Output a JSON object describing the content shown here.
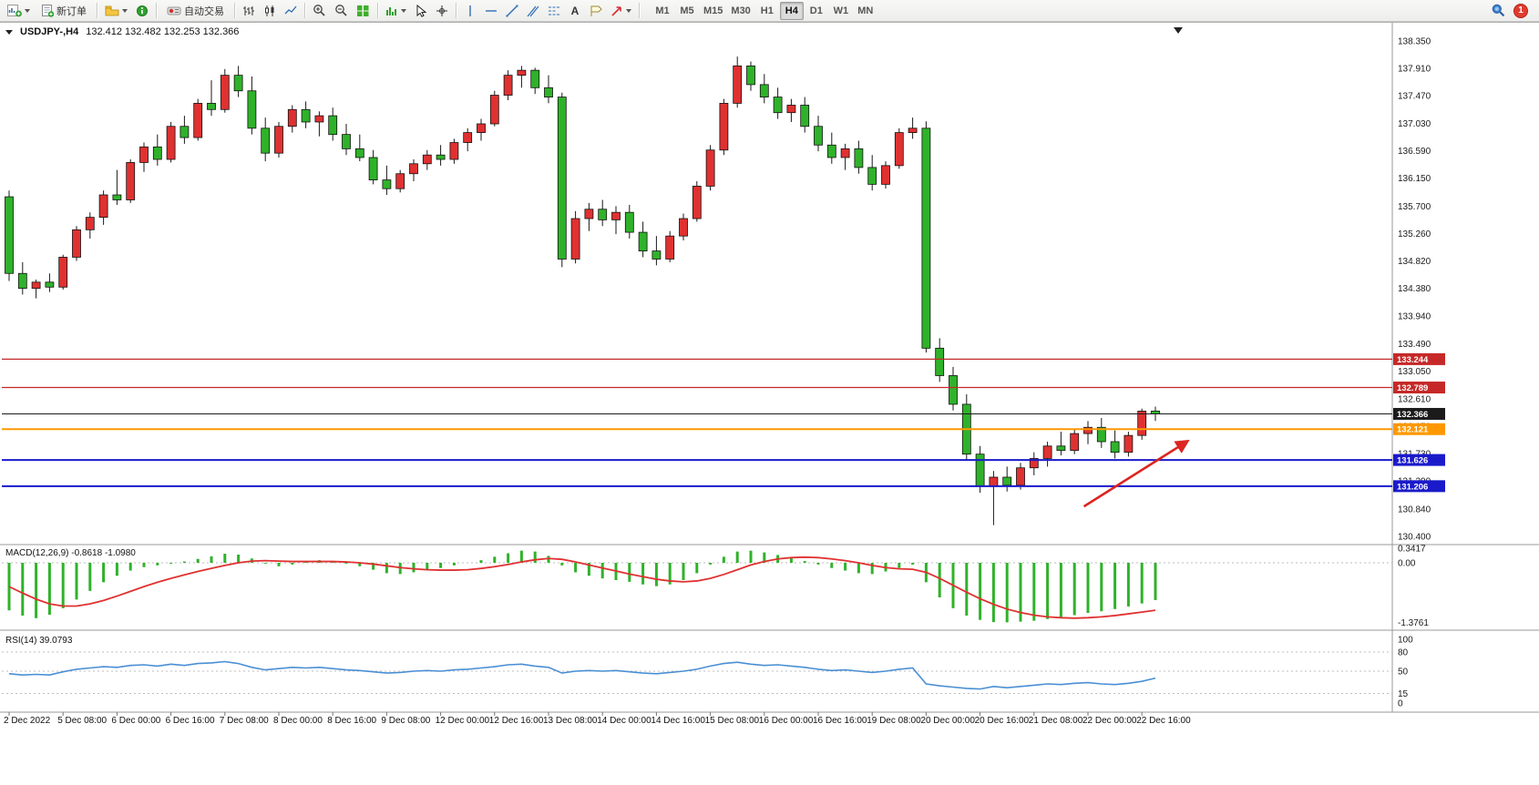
{
  "toolbar": {
    "buttons": {
      "new_order": "新订单",
      "auto_trading": "自动交易",
      "text_tool": "A"
    },
    "timeframes": [
      "M1",
      "M5",
      "M15",
      "M30",
      "H1",
      "H4",
      "D1",
      "W1",
      "MN"
    ],
    "active_timeframe": "H4",
    "notification_badge": "1"
  },
  "chart_header": {
    "symbol_period": "USDJPY-,H4",
    "ohlc": "132.412 132.482 132.253 132.366"
  },
  "chart_data": {
    "type": "candlestick",
    "symbol": "USDJPY-",
    "timeframe": "H4",
    "colors": {
      "bull": "#e03131",
      "bear": "#2fb22a",
      "wick": "#1a1a1a",
      "macd_hist": "#2fb22a",
      "macd_signal": "#e03131",
      "rsi_line": "#4a8fd4",
      "arrow": "#dd2420",
      "level_red": "#c62828",
      "level_orange": "#ff9800",
      "level_blue": "#1a1acb",
      "current_price": "#1b1b1b"
    },
    "price_axis": {
      "min": 130.4,
      "max": 138.35,
      "ticks": [
        "138.350",
        "137.910",
        "137.470",
        "137.030",
        "136.590",
        "136.150",
        "135.700",
        "135.260",
        "134.820",
        "134.380",
        "133.940",
        "133.490",
        "133.050",
        "132.610",
        "132.170",
        "131.730",
        "131.290",
        "130.840",
        "130.400"
      ]
    },
    "x_label_step": 4,
    "x_labels": [
      "2 Dec 2022",
      "5 Dec 08:00",
      "6 Dec 00:00",
      "6 Dec 16:00",
      "7 Dec 08:00",
      "8 Dec 00:00",
      "8 Dec 16:00",
      "9 Dec 08:00",
      "12 Dec 00:00",
      "12 Dec 16:00",
      "13 Dec 08:00",
      "14 Dec 00:00",
      "14 Dec 16:00",
      "15 Dec 08:00",
      "16 Dec 00:00",
      "16 Dec 16:00",
      "19 Dec 08:00",
      "20 Dec 00:00",
      "20 Dec 16:00",
      "21 Dec 08:00",
      "22 Dec 00:00",
      "22 Dec 16:00"
    ],
    "candles": [
      [
        135.85,
        135.95,
        134.5,
        134.62
      ],
      [
        134.62,
        134.8,
        134.28,
        134.38
      ],
      [
        134.38,
        134.52,
        134.22,
        134.48
      ],
      [
        134.48,
        134.62,
        134.32,
        134.4
      ],
      [
        134.4,
        134.92,
        134.36,
        134.88
      ],
      [
        134.88,
        135.38,
        134.82,
        135.32
      ],
      [
        135.32,
        135.6,
        135.18,
        135.52
      ],
      [
        135.52,
        135.95,
        135.4,
        135.88
      ],
      [
        135.88,
        136.28,
        135.72,
        135.8
      ],
      [
        135.8,
        136.45,
        135.75,
        136.4
      ],
      [
        136.4,
        136.72,
        136.25,
        136.65
      ],
      [
        136.65,
        136.85,
        136.35,
        136.45
      ],
      [
        136.45,
        137.05,
        136.4,
        136.98
      ],
      [
        136.98,
        137.15,
        136.7,
        136.8
      ],
      [
        136.8,
        137.42,
        136.75,
        137.35
      ],
      [
        137.35,
        137.72,
        137.15,
        137.25
      ],
      [
        137.25,
        137.9,
        137.2,
        137.8
      ],
      [
        137.8,
        137.95,
        137.45,
        137.55
      ],
      [
        137.55,
        137.78,
        136.85,
        136.95
      ],
      [
        136.95,
        137.12,
        136.42,
        136.55
      ],
      [
        136.55,
        137.05,
        136.48,
        136.98
      ],
      [
        136.98,
        137.32,
        136.88,
        137.25
      ],
      [
        137.25,
        137.38,
        136.95,
        137.05
      ],
      [
        137.05,
        137.22,
        136.82,
        137.15
      ],
      [
        137.15,
        137.28,
        136.75,
        136.85
      ],
      [
        136.85,
        137.02,
        136.52,
        136.62
      ],
      [
        136.62,
        136.85,
        136.42,
        136.48
      ],
      [
        136.48,
        136.6,
        136.05,
        136.12
      ],
      [
        136.12,
        136.35,
        135.88,
        135.98
      ],
      [
        135.98,
        136.28,
        135.92,
        136.22
      ],
      [
        136.22,
        136.45,
        136.1,
        136.38
      ],
      [
        136.38,
        136.6,
        136.28,
        136.52
      ],
      [
        136.52,
        136.68,
        136.35,
        136.45
      ],
      [
        136.45,
        136.78,
        136.38,
        136.72
      ],
      [
        136.72,
        136.95,
        136.58,
        136.88
      ],
      [
        136.88,
        137.1,
        136.75,
        137.02
      ],
      [
        137.02,
        137.55,
        136.98,
        137.48
      ],
      [
        137.48,
        137.88,
        137.4,
        137.8
      ],
      [
        137.8,
        137.95,
        137.6,
        137.88
      ],
      [
        137.88,
        137.92,
        137.5,
        137.6
      ],
      [
        137.6,
        137.8,
        137.35,
        137.45
      ],
      [
        137.45,
        137.52,
        134.72,
        134.85
      ],
      [
        134.85,
        135.62,
        134.78,
        135.5
      ],
      [
        135.5,
        135.75,
        135.3,
        135.65
      ],
      [
        135.65,
        135.8,
        135.38,
        135.48
      ],
      [
        135.48,
        135.7,
        135.25,
        135.6
      ],
      [
        135.6,
        135.72,
        135.18,
        135.28
      ],
      [
        135.28,
        135.45,
        134.88,
        134.98
      ],
      [
        134.98,
        135.22,
        134.75,
        134.85
      ],
      [
        134.85,
        135.3,
        134.8,
        135.22
      ],
      [
        135.22,
        135.58,
        135.15,
        135.5
      ],
      [
        135.5,
        136.1,
        135.45,
        136.02
      ],
      [
        136.02,
        136.68,
        135.95,
        136.6
      ],
      [
        136.6,
        137.42,
        136.52,
        137.35
      ],
      [
        137.35,
        138.1,
        137.28,
        137.95
      ],
      [
        137.95,
        138.02,
        137.55,
        137.65
      ],
      [
        137.65,
        137.82,
        137.35,
        137.45
      ],
      [
        137.45,
        137.6,
        137.1,
        137.2
      ],
      [
        137.2,
        137.42,
        137.05,
        137.32
      ],
      [
        137.32,
        137.45,
        136.88,
        136.98
      ],
      [
        136.98,
        137.15,
        136.58,
        136.68
      ],
      [
        136.68,
        136.88,
        136.38,
        136.48
      ],
      [
        136.48,
        136.7,
        136.28,
        136.62
      ],
      [
        136.62,
        136.75,
        136.22,
        136.32
      ],
      [
        136.32,
        136.52,
        135.95,
        136.05
      ],
      [
        136.05,
        136.42,
        135.98,
        136.35
      ],
      [
        136.35,
        136.95,
        136.3,
        136.88
      ],
      [
        136.88,
        137.12,
        136.78,
        136.95
      ],
      [
        136.95,
        137.06,
        133.35,
        133.42
      ],
      [
        133.42,
        133.58,
        132.88,
        132.98
      ],
      [
        132.98,
        133.12,
        132.42,
        132.52
      ],
      [
        132.52,
        132.68,
        131.62,
        131.72
      ],
      [
        131.72,
        131.85,
        131.1,
        131.2
      ],
      [
        131.2,
        131.45,
        130.58,
        131.35
      ],
      [
        131.35,
        131.52,
        131.12,
        131.22
      ],
      [
        131.22,
        131.58,
        131.15,
        131.5
      ],
      [
        131.5,
        131.75,
        131.38,
        131.65
      ],
      [
        131.65,
        131.92,
        131.52,
        131.85
      ],
      [
        131.85,
        132.08,
        131.7,
        131.78
      ],
      [
        131.78,
        132.12,
        131.72,
        132.05
      ],
      [
        132.05,
        132.25,
        131.88,
        132.15
      ],
      [
        132.15,
        132.3,
        131.82,
        131.92
      ],
      [
        131.92,
        132.1,
        131.65,
        131.75
      ],
      [
        131.75,
        132.08,
        131.68,
        132.02
      ],
      [
        132.02,
        132.45,
        131.95,
        132.41
      ],
      [
        132.412,
        132.482,
        132.253,
        132.366
      ]
    ],
    "levels": [
      {
        "label": "133.244",
        "price": 133.244,
        "color_key": "level_red",
        "width": 1.2
      },
      {
        "label": "132.789",
        "price": 132.789,
        "color_key": "level_red",
        "width": 1.2
      },
      {
        "label": "132.366",
        "price": 132.366,
        "color_key": "current_price",
        "width": 1
      },
      {
        "label": "132.121",
        "price": 132.121,
        "color_key": "level_orange",
        "width": 2
      },
      {
        "label": "131.626",
        "price": 131.626,
        "color_key": "level_blue",
        "width": 2
      },
      {
        "label": "131.206",
        "price": 131.206,
        "color_key": "level_blue",
        "width": 2
      }
    ],
    "arrow": {
      "from": {
        "index": 79.7,
        "price": 130.88
      },
      "to": {
        "index": 87.4,
        "price": 131.93
      }
    },
    "indicators": {
      "macd": {
        "label": "MACD(12,26,9)",
        "values_text": "-0.8618 -1.0980",
        "scale": [
          {
            "text": "0.3417",
            "value": 0.3417
          },
          {
            "text": "0.00",
            "value": 0
          },
          {
            "text": "-1.3761",
            "value": -1.3761
          }
        ],
        "histogram": [
          -1.1,
          -1.22,
          -1.28,
          -1.2,
          -1.05,
          -0.85,
          -0.65,
          -0.45,
          -0.3,
          -0.18,
          -0.1,
          -0.06,
          -0.02,
          0.03,
          0.09,
          0.15,
          0.21,
          0.19,
          0.1,
          -0.02,
          -0.08,
          -0.04,
          0.02,
          0.06,
          0.04,
          -0.02,
          -0.08,
          -0.16,
          -0.24,
          -0.26,
          -0.22,
          -0.16,
          -0.12,
          -0.06,
          0.0,
          0.06,
          0.14,
          0.22,
          0.28,
          0.26,
          0.16,
          -0.06,
          -0.22,
          -0.3,
          -0.36,
          -0.4,
          -0.44,
          -0.5,
          -0.54,
          -0.5,
          -0.4,
          -0.24,
          -0.04,
          0.14,
          0.26,
          0.28,
          0.24,
          0.18,
          0.12,
          0.04,
          -0.04,
          -0.12,
          -0.18,
          -0.24,
          -0.26,
          -0.2,
          -0.12,
          -0.04,
          -0.45,
          -0.8,
          -1.05,
          -1.22,
          -1.32,
          -1.37,
          -1.376,
          -1.36,
          -1.34,
          -1.3,
          -1.26,
          -1.21,
          -1.16,
          -1.12,
          -1.07,
          -1.01,
          -0.94,
          -0.8618
        ],
        "signal": [
          -0.55,
          -0.7,
          -0.84,
          -0.95,
          -1.0,
          -1.0,
          -0.95,
          -0.87,
          -0.77,
          -0.66,
          -0.55,
          -0.45,
          -0.36,
          -0.28,
          -0.2,
          -0.13,
          -0.06,
          0.0,
          0.04,
          0.05,
          0.04,
          0.03,
          0.03,
          0.03,
          0.03,
          0.02,
          0.0,
          -0.03,
          -0.07,
          -0.11,
          -0.14,
          -0.16,
          -0.17,
          -0.17,
          -0.16,
          -0.13,
          -0.09,
          -0.04,
          0.02,
          0.07,
          0.1,
          0.08,
          0.02,
          -0.05,
          -0.12,
          -0.19,
          -0.26,
          -0.32,
          -0.38,
          -0.42,
          -0.44,
          -0.42,
          -0.36,
          -0.27,
          -0.16,
          -0.05,
          0.03,
          0.09,
          0.12,
          0.13,
          0.12,
          0.09,
          0.05,
          0.0,
          -0.06,
          -0.11,
          -0.14,
          -0.15,
          -0.22,
          -0.36,
          -0.52,
          -0.68,
          -0.83,
          -0.96,
          -1.07,
          -1.15,
          -1.21,
          -1.25,
          -1.27,
          -1.28,
          -1.27,
          -1.25,
          -1.22,
          -1.18,
          -1.14,
          -1.098
        ]
      },
      "rsi": {
        "label": "RSI(14)",
        "value_text": "39.0793",
        "scale": [
          {
            "text": "100",
            "value": 100
          },
          {
            "text": "80",
            "value": 80
          },
          {
            "text": "50",
            "value": 50
          },
          {
            "text": "15",
            "value": 15
          },
          {
            "text": "0",
            "value": 0
          }
        ],
        "level_lines": [
          80,
          50,
          15
        ],
        "values": [
          46,
          44,
          45,
          44,
          49,
          53,
          55,
          57,
          56,
          59,
          60,
          58,
          61,
          59,
          62,
          63,
          65,
          62,
          56,
          52,
          54,
          56,
          55,
          56,
          54,
          52,
          51,
          49,
          47,
          48,
          50,
          51,
          50,
          52,
          53,
          55,
          57,
          60,
          61,
          58,
          56,
          47,
          50,
          51,
          50,
          51,
          49,
          47,
          46,
          48,
          50,
          53,
          58,
          62,
          64,
          61,
          59,
          60,
          58,
          56,
          53,
          51,
          52,
          50,
          48,
          50,
          53,
          55,
          30,
          27,
          25,
          23,
          22,
          26,
          24,
          26,
          28,
          30,
          29,
          31,
          32,
          30,
          29,
          31,
          34,
          39.08
        ]
      }
    }
  }
}
